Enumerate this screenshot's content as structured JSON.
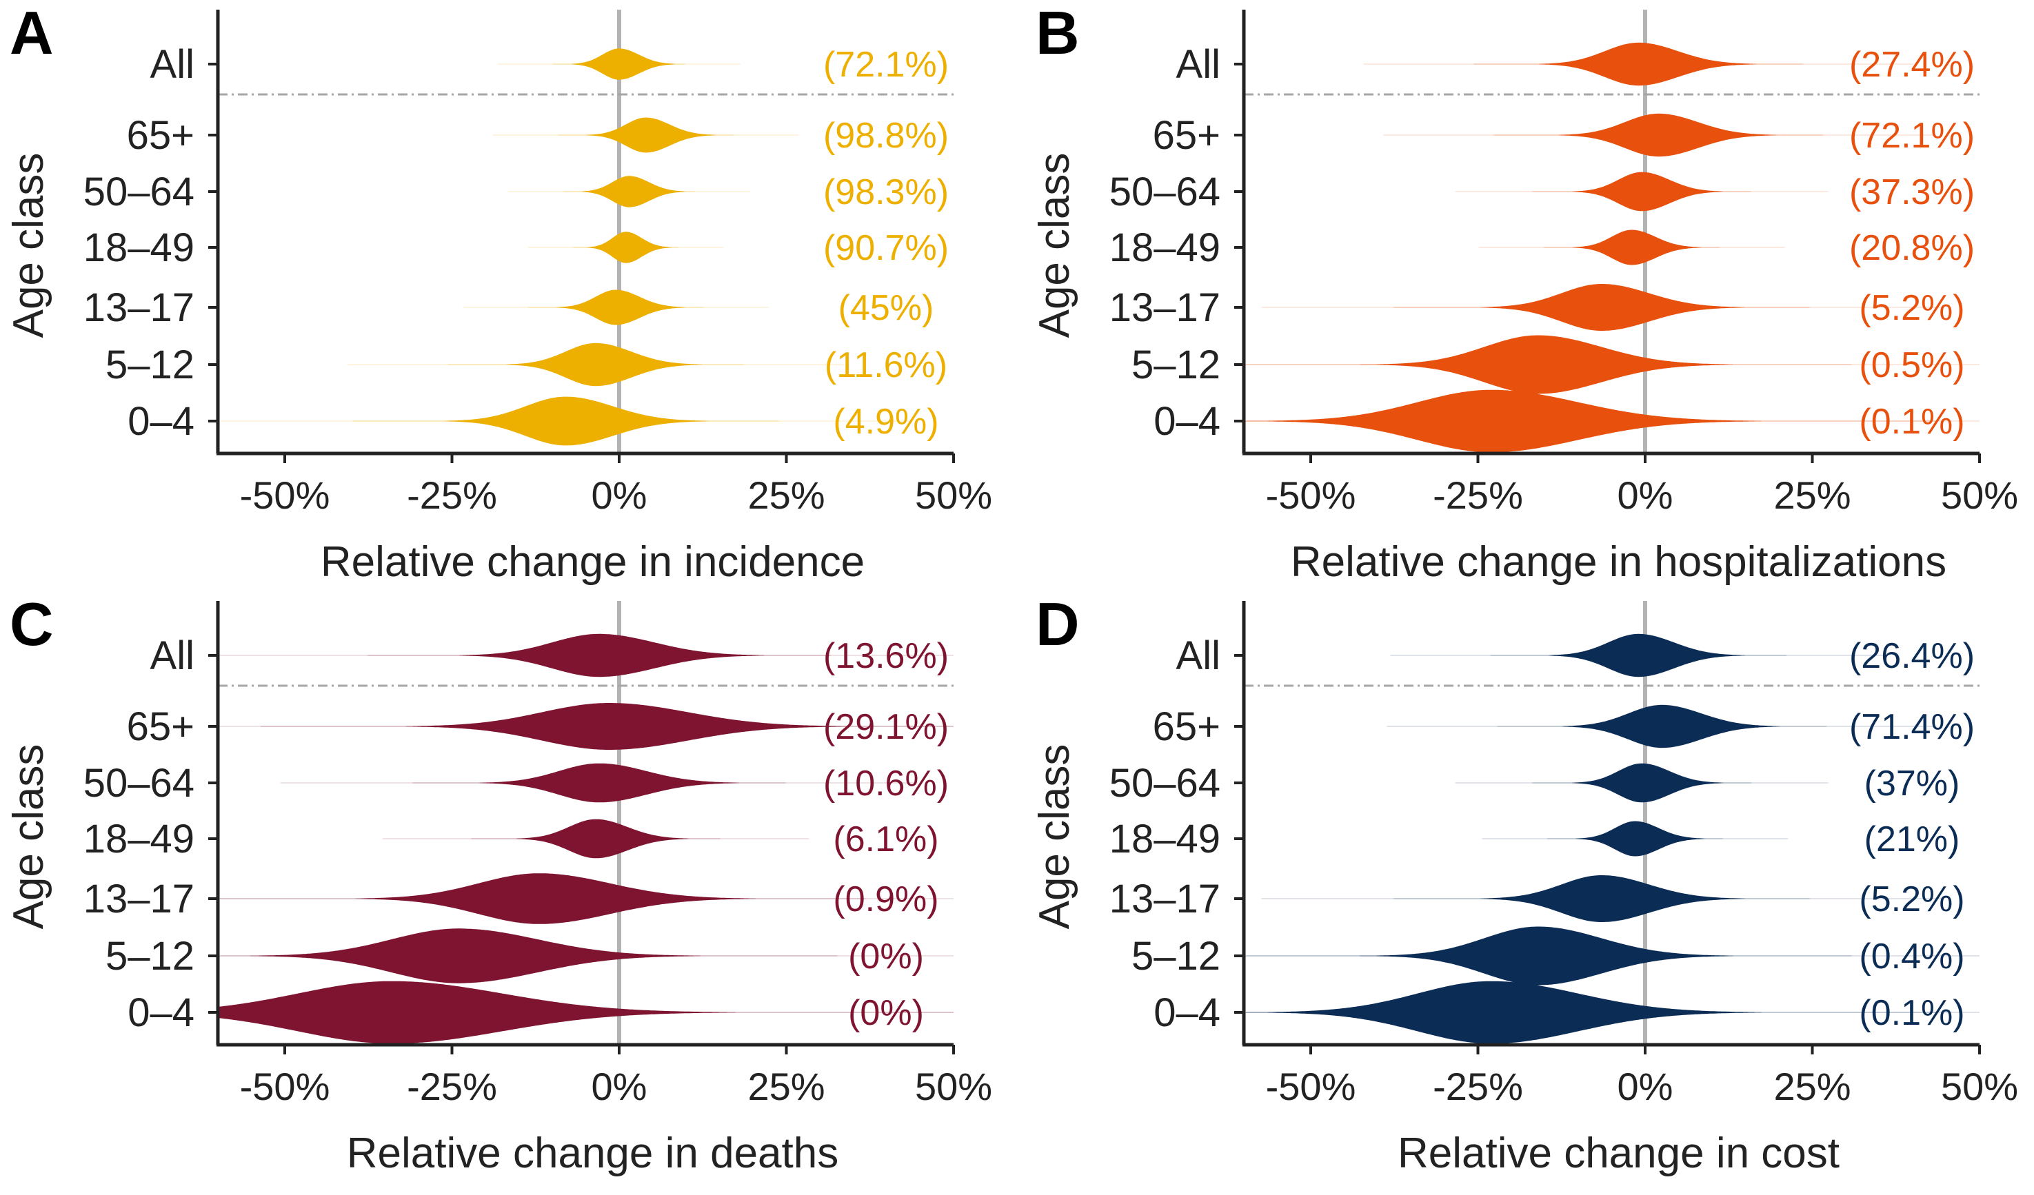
{
  "categories": [
    "All",
    "65+",
    "50–64",
    "18–49",
    "13–17",
    "5–12",
    "0–4"
  ],
  "y_axis_label": "Age class",
  "x_ticks": [
    -50,
    -25,
    0,
    25,
    50
  ],
  "x_tick_labels": [
    "-50%",
    "-25%",
    "0%",
    "25%",
    "50%"
  ],
  "chart_data": [
    {
      "panel": "A",
      "type": "violin",
      "xlabel": "Relative change in incidence",
      "ylabel": "Age class",
      "xlim": [
        -60,
        50
      ],
      "color": "#EDAF00",
      "series": [
        {
          "category": "All",
          "median": 0,
          "spread": 2.5,
          "width": 1.6,
          "label": "(72.1%)"
        },
        {
          "category": "65+",
          "median": 4,
          "spread": 3,
          "width": 1.8,
          "label": "(98.8%)"
        },
        {
          "category": "50–64",
          "median": 1.5,
          "spread": 2.5,
          "width": 1.6,
          "label": "(98.3%)"
        },
        {
          "category": "18–49",
          "median": 1,
          "spread": 2,
          "width": 1.6,
          "label": "(90.7%)"
        },
        {
          "category": "13–17",
          "median": -0.5,
          "spread": 3,
          "width": 1.8,
          "label": "(45%)"
        },
        {
          "category": "5–12",
          "median": -3.5,
          "spread": 4.5,
          "width": 2.2,
          "label": "(11.6%)"
        },
        {
          "category": "0–4",
          "median": -8,
          "spread": 6,
          "width": 2.5,
          "label": "(4.9%)"
        }
      ]
    },
    {
      "panel": "B",
      "type": "violin",
      "xlabel": "Relative change in hospitalizations",
      "ylabel": "Age class",
      "xlim": [
        -60,
        50
      ],
      "color": "#E8500E",
      "series": [
        {
          "category": "All",
          "median": -1,
          "spread": 5,
          "width": 2.2,
          "label": "(27.4%)"
        },
        {
          "category": "65+",
          "median": 2,
          "spread": 5,
          "width": 2.2,
          "label": "(72.1%)"
        },
        {
          "category": "50–64",
          "median": -0.5,
          "spread": 3.5,
          "width": 2.0,
          "label": "(37.3%)"
        },
        {
          "category": "18–49",
          "median": -2,
          "spread": 3,
          "width": 1.8,
          "label": "(20.8%)"
        },
        {
          "category": "13–17",
          "median": -6.5,
          "spread": 6,
          "width": 2.4,
          "label": "(5.2%)"
        },
        {
          "category": "5–12",
          "median": -16,
          "spread": 8,
          "width": 3.0,
          "label": "(0.5%)"
        },
        {
          "category": "0–4",
          "median": -23,
          "spread": 11,
          "width": 3.2,
          "label": "(0.1%)"
        }
      ]
    },
    {
      "panel": "C",
      "type": "violin",
      "xlabel": "Relative change in deaths",
      "ylabel": "Age class",
      "xlim": [
        -60,
        50
      ],
      "color": "#7F1431",
      "series": [
        {
          "category": "All",
          "median": -3,
          "spread": 7,
          "width": 2.2,
          "label": "(13.6%)"
        },
        {
          "category": "65+",
          "median": -1.5,
          "spread": 10,
          "width": 2.4,
          "label": "(29.1%)"
        },
        {
          "category": "50–64",
          "median": -3,
          "spread": 6,
          "width": 2.0,
          "label": "(10.6%)"
        },
        {
          "category": "18–49",
          "median": -3.5,
          "spread": 4,
          "width": 2.0,
          "label": "(6.1%)"
        },
        {
          "category": "13–17",
          "median": -12,
          "spread": 9,
          "width": 2.6,
          "label": "(0.9%)"
        },
        {
          "category": "5–12",
          "median": -24,
          "spread": 10,
          "width": 2.8,
          "label": "(0%)"
        },
        {
          "category": "0–4",
          "median": -34,
          "spread": 14,
          "width": 3.2,
          "label": "(0%)"
        }
      ]
    },
    {
      "panel": "D",
      "type": "violin",
      "xlabel": "Relative change in cost",
      "ylabel": "Age class",
      "xlim": [
        -60,
        50
      ],
      "color": "#0B2C55",
      "series": [
        {
          "category": "All",
          "median": -1,
          "spread": 4.5,
          "width": 2.2,
          "label": "(26.4%)"
        },
        {
          "category": "65+",
          "median": 2.5,
          "spread": 5,
          "width": 2.2,
          "label": "(71.4%)"
        },
        {
          "category": "50–64",
          "median": -0.5,
          "spread": 3.5,
          "width": 2.0,
          "label": "(37%)"
        },
        {
          "category": "18–49",
          "median": -1.5,
          "spread": 3,
          "width": 1.8,
          "label": "(21%)"
        },
        {
          "category": "13–17",
          "median": -6.5,
          "spread": 6,
          "width": 2.4,
          "label": "(5.2%)"
        },
        {
          "category": "5–12",
          "median": -16,
          "spread": 8,
          "width": 3.0,
          "label": "(0.4%)"
        },
        {
          "category": "0–4",
          "median": -23,
          "spread": 11,
          "width": 3.2,
          "label": "(0.1%)"
        }
      ]
    }
  ]
}
